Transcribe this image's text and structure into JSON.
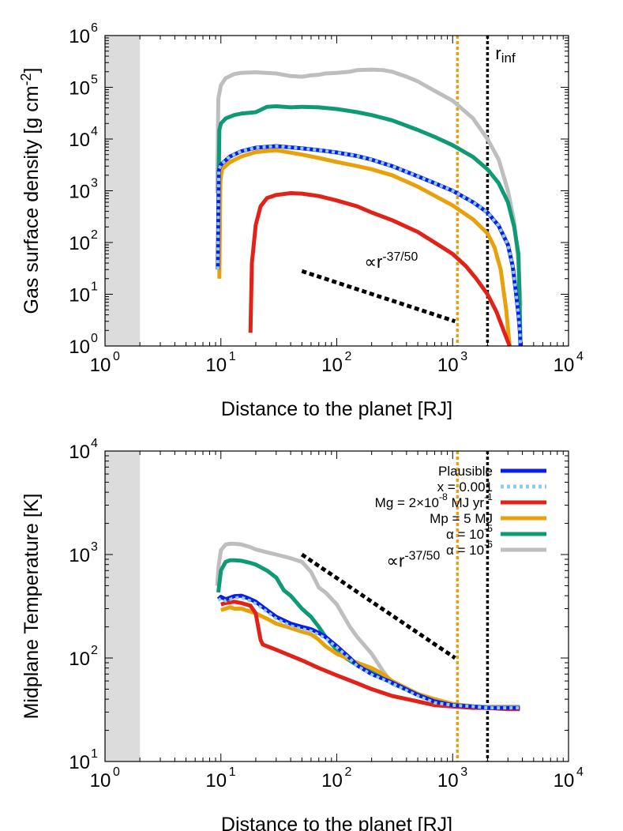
{
  "chart_data": [
    {
      "type": "line",
      "xlabel": "Distance to the planet [RJ]",
      "ylabel": "Gas surface density [g cm-2]",
      "xscale": "log",
      "yscale": "log",
      "xlim": [
        1,
        10000
      ],
      "ylim": [
        1,
        1000000
      ],
      "grid": false,
      "x_ticks": [
        {
          "base": "10",
          "exp": "0",
          "v": 1
        },
        {
          "base": "10",
          "exp": "1",
          "v": 10
        },
        {
          "base": "10",
          "exp": "2",
          "v": 100
        },
        {
          "base": "10",
          "exp": "3",
          "v": 1000
        },
        {
          "base": "10",
          "exp": "4",
          "v": 10000
        }
      ],
      "y_ticks": [
        {
          "base": "10",
          "exp": "0",
          "v": 1
        },
        {
          "base": "10",
          "exp": "1",
          "v": 10
        },
        {
          "base": "10",
          "exp": "2",
          "v": 100
        },
        {
          "base": "10",
          "exp": "3",
          "v": 1000
        },
        {
          "base": "10",
          "exp": "4",
          "v": 10000
        },
        {
          "base": "10",
          "exp": "5",
          "v": 100000
        },
        {
          "base": "10",
          "exp": "6",
          "v": 1000000
        }
      ],
      "shaded_region": {
        "x": [
          1,
          2
        ],
        "color": "#dcdcdc"
      },
      "vlines": [
        {
          "x": 1100,
          "color": "#e8a10a",
          "style": "dotted",
          "label": ""
        },
        {
          "x": 2000,
          "color": "#000000",
          "style": "dotted",
          "label": "rinf"
        }
      ],
      "annotations": [
        {
          "type": "power_law_guide",
          "text": "∝r-37/50",
          "x": [
            50,
            1050
          ],
          "y": [
            28,
            3
          ]
        }
      ],
      "series": [
        {
          "name": "Plausible",
          "color": "#0b1ee6",
          "style": "solid",
          "x": [
            9.4,
            9.6,
            10,
            12,
            15,
            20,
            30,
            50,
            70,
            100,
            150,
            200,
            300,
            500,
            700,
            1000,
            1500,
            2000,
            2500,
            3000,
            3300,
            3500,
            3700,
            3800,
            3850
          ],
          "y": [
            30,
            2500,
            3200,
            4600,
            5800,
            6800,
            7300,
            6600,
            6100,
            5500,
            4700,
            4000,
            3000,
            1900,
            1400,
            1000,
            600,
            380,
            210,
            90,
            35,
            12,
            4,
            2,
            1
          ]
        },
        {
          "name": "x = 0.001",
          "color": "#8ccde6",
          "style": "dotted",
          "x": [
            9.4,
            9.6,
            10,
            12,
            15,
            20,
            30,
            50,
            70,
            100,
            150,
            200,
            300,
            500,
            700,
            1000,
            1500,
            2000,
            2500,
            3000,
            3300,
            3500,
            3700,
            3800,
            3850
          ],
          "y": [
            30,
            2500,
            3200,
            4600,
            5800,
            6800,
            7300,
            6600,
            6100,
            5500,
            4700,
            4000,
            3000,
            1900,
            1400,
            1000,
            600,
            380,
            210,
            90,
            35,
            12,
            4,
            2,
            1
          ]
        },
        {
          "name": "Mg = 2×10-8 MJ yr-1",
          "color": "#e22218",
          "style": "solid",
          "x": [
            18,
            18.5,
            20,
            22,
            25,
            30,
            40,
            50,
            70,
            100,
            150,
            200,
            300,
            500,
            700,
            1000,
            1300,
            1600,
            2000,
            2400,
            2800,
            3100
          ],
          "y": [
            1.8,
            40,
            220,
            500,
            720,
            830,
            900,
            880,
            790,
            650,
            500,
            380,
            270,
            160,
            100,
            60,
            35,
            20,
            10,
            4.5,
            1.8,
            1
          ]
        },
        {
          "name": "Mp = 5 MJ",
          "color": "#e8a10a",
          "style": "solid",
          "x": [
            9.7,
            9.9,
            10.2,
            12,
            15,
            20,
            30,
            50,
            70,
            100,
            150,
            200,
            300,
            500,
            700,
            1000,
            1500,
            2000,
            2300,
            2600,
            2900,
            3100
          ],
          "y": [
            20,
            1500,
            2600,
            3600,
            4600,
            5600,
            6100,
            5000,
            4300,
            3600,
            3000,
            2600,
            2000,
            1200,
            800,
            520,
            280,
            150,
            80,
            30,
            5,
            1
          ]
        },
        {
          "name": "α = 10-5",
          "color": "#0f9a76",
          "style": "solid",
          "x": [
            9.5,
            9.7,
            10,
            11,
            13,
            15,
            20,
            25,
            30,
            40,
            50,
            70,
            100,
            150,
            200,
            300,
            500,
            700,
            1000,
            1500,
            2000,
            2500,
            3000,
            3400,
            3700,
            3800,
            3850
          ],
          "y": [
            300,
            15000,
            20000,
            25000,
            29000,
            31000,
            33000,
            42000,
            43000,
            41000,
            42000,
            41000,
            38000,
            33000,
            29000,
            23000,
            15000,
            11000,
            7600,
            4500,
            2600,
            1400,
            600,
            200,
            60,
            5,
            1
          ]
        },
        {
          "name": "α = 10-6",
          "color": "#bebebe",
          "style": "solid",
          "x": [
            9.3,
            9.5,
            10,
            11,
            13,
            15,
            20,
            30,
            40,
            50,
            60,
            70,
            80,
            100,
            130,
            150,
            200,
            250,
            300,
            400,
            500,
            700,
            1000,
            1500,
            2000,
            2500,
            3000,
            3400,
            3700,
            3850
          ],
          "y": [
            900,
            60000,
            110000,
            150000,
            180000,
            190000,
            195000,
            185000,
            165000,
            160000,
            170000,
            175000,
            185000,
            190000,
            200000,
            215000,
            220000,
            215000,
            200000,
            160000,
            130000,
            85000,
            55000,
            25000,
            10000,
            4000,
            1000,
            250,
            40,
            6
          ]
        }
      ]
    },
    {
      "type": "line",
      "xlabel": "Distance to the planet [RJ]",
      "ylabel": "Midplane Temperature [K]",
      "xscale": "log",
      "yscale": "log",
      "xlim": [
        1,
        10000
      ],
      "ylim": [
        10,
        10000
      ],
      "grid": false,
      "legend_position": "top-right",
      "x_ticks": [
        {
          "base": "10",
          "exp": "0",
          "v": 1
        },
        {
          "base": "10",
          "exp": "1",
          "v": 10
        },
        {
          "base": "10",
          "exp": "2",
          "v": 100
        },
        {
          "base": "10",
          "exp": "3",
          "v": 1000
        },
        {
          "base": "10",
          "exp": "4",
          "v": 10000
        }
      ],
      "y_ticks": [
        {
          "base": "10",
          "exp": "1",
          "v": 10
        },
        {
          "base": "10",
          "exp": "2",
          "v": 100
        },
        {
          "base": "10",
          "exp": "3",
          "v": 1000
        },
        {
          "base": "10",
          "exp": "4",
          "v": 10000
        }
      ],
      "shaded_region": {
        "x": [
          1,
          2
        ],
        "color": "#dcdcdc"
      },
      "vlines": [
        {
          "x": 1100,
          "color": "#e8a10a",
          "style": "dotted",
          "label": ""
        },
        {
          "x": 2000,
          "color": "#000000",
          "style": "dotted",
          "label": ""
        }
      ],
      "annotations": [
        {
          "type": "power_law_guide",
          "text": "∝r-37/50",
          "x": [
            50,
            1050
          ],
          "y": [
            1000,
            100
          ]
        }
      ],
      "series": [
        {
          "name": "Plausible",
          "color": "#0b1ee6",
          "style": "solid",
          "x": [
            9.5,
            10,
            11,
            13,
            15,
            17,
            20,
            25,
            30,
            40,
            50,
            60,
            70,
            80,
            100,
            130,
            150,
            200,
            300,
            500,
            700,
            1000,
            1500,
            2000,
            3000,
            3800
          ],
          "y": [
            370,
            390,
            370,
            395,
            400,
            380,
            350,
            290,
            250,
            215,
            200,
            190,
            175,
            160,
            130,
            100,
            85,
            70,
            58,
            44,
            38,
            35,
            34,
            33,
            33,
            33
          ]
        },
        {
          "name": "x = 0.001",
          "color": "#8ccde6",
          "style": "dotted",
          "x": [
            9.5,
            10,
            11,
            13,
            15,
            17,
            20,
            25,
            30,
            40,
            50,
            60,
            70,
            80,
            100,
            130,
            150,
            200,
            300,
            500,
            700,
            1000,
            1500,
            2000,
            3000,
            3800
          ],
          "y": [
            360,
            375,
            355,
            380,
            385,
            365,
            335,
            280,
            240,
            205,
            192,
            182,
            168,
            155,
            127,
            98,
            84,
            69,
            57,
            43,
            37,
            35,
            34,
            33,
            33,
            33
          ]
        },
        {
          "name": "Mg = 2×10-8 MJ yr-1",
          "color": "#e22218",
          "style": "solid",
          "x": [
            10,
            11,
            13,
            15,
            18,
            20,
            21,
            22,
            23,
            30,
            50,
            70,
            100,
            150,
            200,
            300,
            500,
            700,
            1000,
            1500,
            2000,
            3000,
            3800
          ],
          "y": [
            330,
            340,
            350,
            340,
            320,
            270,
            200,
            150,
            135,
            120,
            95,
            80,
            68,
            57,
            50,
            43,
            38,
            35,
            34,
            33,
            33,
            32,
            32
          ]
        },
        {
          "name": "Mp = 5 MJ",
          "color": "#e8a10a",
          "style": "solid",
          "x": [
            10,
            11,
            12,
            13,
            15,
            20,
            25,
            30,
            40,
            50,
            60,
            70,
            80,
            100,
            130,
            150,
            200,
            250,
            300,
            500,
            700,
            1000,
            1500,
            2000,
            3000,
            3800
          ],
          "y": [
            290,
            300,
            310,
            300,
            300,
            270,
            240,
            215,
            195,
            180,
            170,
            150,
            130,
            110,
            97,
            90,
            80,
            70,
            60,
            45,
            40,
            36,
            34,
            33,
            33,
            33
          ]
        },
        {
          "name": "α = 10-5",
          "color": "#0f9a76",
          "style": "solid",
          "x": [
            9.5,
            10,
            11,
            12,
            13,
            15,
            18,
            20,
            25,
            30,
            35,
            40,
            50,
            60,
            70,
            80,
            100,
            120,
            150,
            200,
            250,
            300,
            500,
            700,
            1000,
            1500,
            2000,
            3000,
            3800
          ],
          "y": [
            430,
            700,
            850,
            880,
            880,
            870,
            830,
            800,
            700,
            600,
            450,
            400,
            300,
            250,
            200,
            160,
            120,
            100,
            85,
            75,
            65,
            57,
            44,
            38,
            35,
            34,
            33,
            33,
            33
          ]
        },
        {
          "name": "α = 10-6",
          "color": "#bebebe",
          "style": "solid",
          "x": [
            9.3,
            9.6,
            10,
            11,
            12,
            13,
            15,
            18,
            20,
            25,
            30,
            40,
            50,
            60,
            70,
            80,
            100,
            130,
            150,
            200,
            250,
            300,
            500,
            700,
            1000,
            1500,
            2000,
            3000,
            3800
          ],
          "y": [
            500,
            800,
            1100,
            1250,
            1270,
            1270,
            1250,
            1180,
            1120,
            1050,
            1000,
            920,
            850,
            680,
            480,
            430,
            330,
            200,
            160,
            110,
            75,
            57,
            45,
            38,
            35,
            34,
            34,
            34,
            34
          ]
        }
      ]
    }
  ]
}
